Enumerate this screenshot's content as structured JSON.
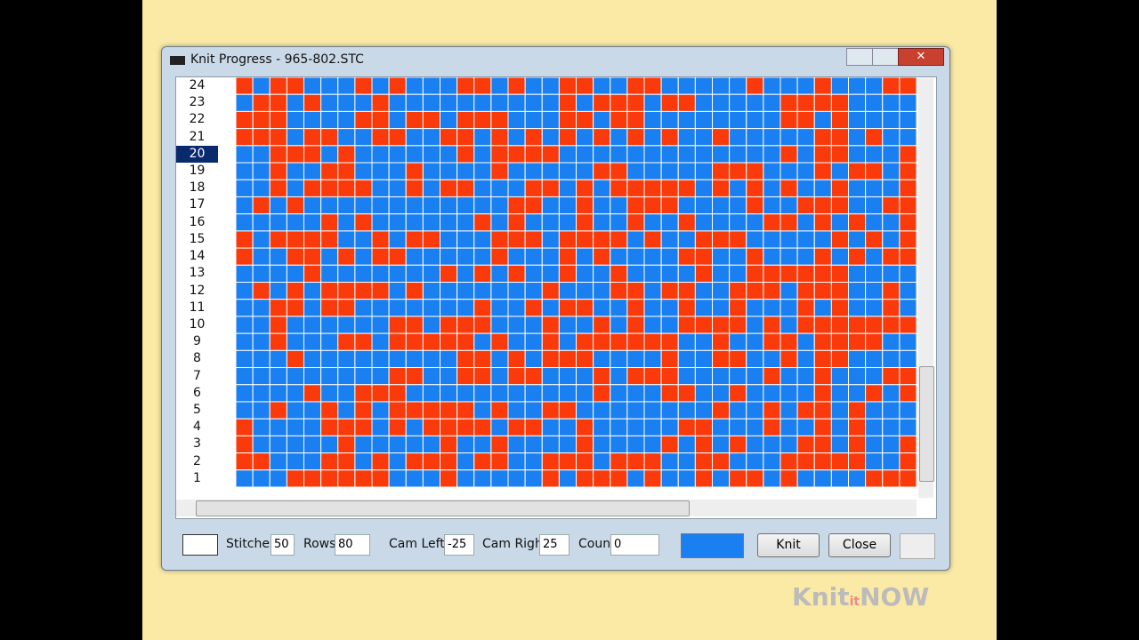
{
  "window": {
    "title": "Knit Progress - 965-802.STC"
  },
  "grid": {
    "rows": [
      24,
      23,
      22,
      21,
      20,
      19,
      18,
      17,
      16,
      15,
      14,
      13,
      12,
      11,
      10,
      9,
      8,
      7,
      6,
      5,
      4,
      3,
      2,
      1
    ],
    "selected_row": 20
  },
  "toolbar": {
    "stitches": {
      "label": "Stitches",
      "value": 50
    },
    "rows": {
      "label": "Rows",
      "value": 80
    },
    "cam_left": {
      "label": "Cam Left",
      "value": -25
    },
    "cam_right": {
      "label": "Cam Right",
      "value": 25
    },
    "count": {
      "label": "Count",
      "value": 0
    }
  },
  "buttons": {
    "knit": "Knit",
    "close": "Close"
  },
  "logo": {
    "brand": "Knit",
    "middle": "it",
    "suffix": "NOW"
  }
}
